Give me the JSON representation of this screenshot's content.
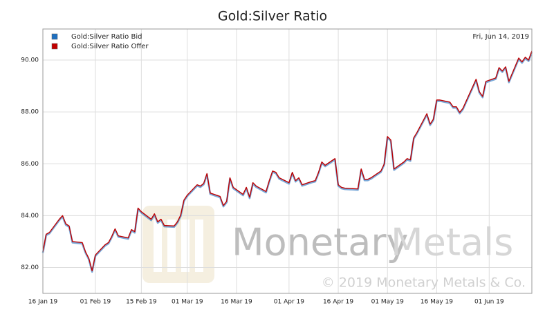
{
  "chart_data": {
    "type": "line",
    "title": "Gold:Silver Ratio",
    "annotations": [
      "Fri, Jun 14, 2019",
      "Monetary",
      "Metals",
      "© 2019 Monetary Metals & Co."
    ],
    "legend": "top-left",
    "grid": true,
    "x": [
      "2019-01-16",
      "2019-01-17",
      "2019-01-18",
      "2019-01-21",
      "2019-01-22",
      "2019-01-23",
      "2019-01-24",
      "2019-01-25",
      "2019-01-28",
      "2019-01-29",
      "2019-01-30",
      "2019-01-31",
      "2019-02-01",
      "2019-02-04",
      "2019-02-05",
      "2019-02-06",
      "2019-02-07",
      "2019-02-08",
      "2019-02-11",
      "2019-02-12",
      "2019-02-13",
      "2019-02-14",
      "2019-02-15",
      "2019-02-18",
      "2019-02-19",
      "2019-02-20",
      "2019-02-21",
      "2019-02-22",
      "2019-02-25",
      "2019-02-26",
      "2019-02-27",
      "2019-02-28",
      "2019-03-01",
      "2019-03-04",
      "2019-03-05",
      "2019-03-06",
      "2019-03-07",
      "2019-03-08",
      "2019-03-11",
      "2019-03-12",
      "2019-03-13",
      "2019-03-14",
      "2019-03-15",
      "2019-03-18",
      "2019-03-19",
      "2019-03-20",
      "2019-03-21",
      "2019-03-22",
      "2019-03-25",
      "2019-03-26",
      "2019-03-27",
      "2019-03-28",
      "2019-03-29",
      "2019-04-01",
      "2019-04-02",
      "2019-04-03",
      "2019-04-04",
      "2019-04-05",
      "2019-04-08",
      "2019-04-09",
      "2019-04-10",
      "2019-04-11",
      "2019-04-12",
      "2019-04-15",
      "2019-04-16",
      "2019-04-17",
      "2019-04-18",
      "2019-04-22",
      "2019-04-23",
      "2019-04-24",
      "2019-04-25",
      "2019-04-26",
      "2019-04-29",
      "2019-04-30",
      "2019-05-01",
      "2019-05-02",
      "2019-05-03",
      "2019-05-06",
      "2019-05-07",
      "2019-05-08",
      "2019-05-09",
      "2019-05-10",
      "2019-05-13",
      "2019-05-14",
      "2019-05-15",
      "2019-05-16",
      "2019-05-17",
      "2019-05-20",
      "2019-05-21",
      "2019-05-22",
      "2019-05-23",
      "2019-05-24",
      "2019-05-28",
      "2019-05-29",
      "2019-05-30",
      "2019-05-31",
      "2019-06-03",
      "2019-06-04",
      "2019-06-05",
      "2019-06-06",
      "2019-06-07",
      "2019-06-10",
      "2019-06-11",
      "2019-06-12",
      "2019-06-13",
      "2019-06-14"
    ],
    "series": [
      {
        "name": "Gold:Silver Ratio Bid",
        "color": "#1f6fbf",
        "values": [
          82.56,
          83.24,
          83.31,
          83.82,
          83.96,
          83.64,
          83.56,
          82.96,
          82.92,
          82.56,
          82.31,
          81.83,
          82.44,
          82.84,
          82.92,
          83.16,
          83.45,
          83.18,
          83.1,
          83.42,
          83.34,
          84.25,
          84.11,
          83.82,
          84.03,
          83.72,
          83.82,
          83.58,
          83.56,
          83.72,
          83.98,
          84.56,
          84.75,
          85.15,
          85.1,
          85.2,
          85.58,
          84.83,
          84.7,
          84.35,
          84.51,
          85.42,
          85.05,
          84.78,
          85.05,
          84.67,
          85.23,
          85.1,
          84.89,
          85.31,
          85.68,
          85.63,
          85.42,
          85.23,
          85.63,
          85.31,
          85.42,
          85.15,
          85.28,
          85.31,
          85.63,
          86.03,
          85.9,
          86.16,
          85.15,
          85.05,
          85.02,
          84.99,
          85.76,
          85.36,
          85.36,
          85.42,
          85.68,
          85.95,
          87.01,
          86.88,
          85.76,
          86.03,
          86.16,
          86.11,
          86.96,
          87.17,
          87.89,
          87.49,
          87.68,
          88.42,
          88.42,
          88.34,
          88.16,
          88.16,
          87.94,
          88.1,
          89.22,
          88.74,
          88.56,
          89.14,
          89.27,
          89.67,
          89.54,
          89.7,
          89.14,
          90.04,
          89.89,
          90.07,
          89.96,
          90.31
        ]
      },
      {
        "name": "Gold:Silver Ratio Offer",
        "color": "#c00000",
        "values": [
          82.6,
          83.28,
          83.35,
          83.86,
          84.0,
          83.68,
          83.6,
          83.0,
          82.96,
          82.6,
          82.35,
          81.87,
          82.48,
          82.88,
          82.96,
          83.2,
          83.49,
          83.22,
          83.14,
          83.46,
          83.38,
          84.29,
          84.15,
          83.86,
          84.07,
          83.76,
          83.86,
          83.62,
          83.6,
          83.76,
          84.02,
          84.6,
          84.79,
          85.19,
          85.14,
          85.24,
          85.62,
          84.87,
          84.74,
          84.39,
          84.55,
          85.46,
          85.09,
          84.82,
          85.09,
          84.71,
          85.27,
          85.14,
          84.93,
          85.35,
          85.72,
          85.67,
          85.46,
          85.27,
          85.67,
          85.35,
          85.46,
          85.19,
          85.32,
          85.35,
          85.67,
          86.07,
          85.94,
          86.2,
          85.19,
          85.09,
          85.06,
          85.03,
          85.8,
          85.4,
          85.4,
          85.46,
          85.72,
          85.99,
          87.05,
          86.92,
          85.8,
          86.07,
          86.2,
          86.15,
          87.0,
          87.21,
          87.93,
          87.53,
          87.72,
          88.46,
          88.46,
          88.38,
          88.2,
          88.2,
          87.98,
          88.14,
          89.26,
          88.78,
          88.6,
          89.18,
          89.31,
          89.71,
          89.58,
          89.74,
          89.18,
          90.08,
          89.93,
          90.11,
          90.0,
          90.35
        ]
      }
    ],
    "xlim": [
      "2019-01-16",
      "2019-06-14"
    ],
    "xticks": [
      {
        "value": "2019-01-16",
        "label": "16 Jan 19"
      },
      {
        "value": "2019-02-01",
        "label": "01 Feb 19"
      },
      {
        "value": "2019-02-15",
        "label": "15 Feb 19"
      },
      {
        "value": "2019-03-01",
        "label": "01 Mar 19"
      },
      {
        "value": "2019-03-16",
        "label": "16 Mar 19"
      },
      {
        "value": "2019-04-01",
        "label": "01 Apr 19"
      },
      {
        "value": "2019-04-16",
        "label": "16 Apr 19"
      },
      {
        "value": "2019-05-01",
        "label": "01 May 19"
      },
      {
        "value": "2019-05-16",
        "label": "16 May 19"
      },
      {
        "value": "2019-06-01",
        "label": "01 Jun 19"
      }
    ],
    "ylim": [
      81,
      91.2
    ],
    "yticks": [
      {
        "value": 82,
        "label": "82.00"
      },
      {
        "value": 84,
        "label": "84.00"
      },
      {
        "value": 86,
        "label": "86.00"
      },
      {
        "value": 88,
        "label": "88.00"
      },
      {
        "value": 90,
        "label": "90.00"
      }
    ]
  }
}
